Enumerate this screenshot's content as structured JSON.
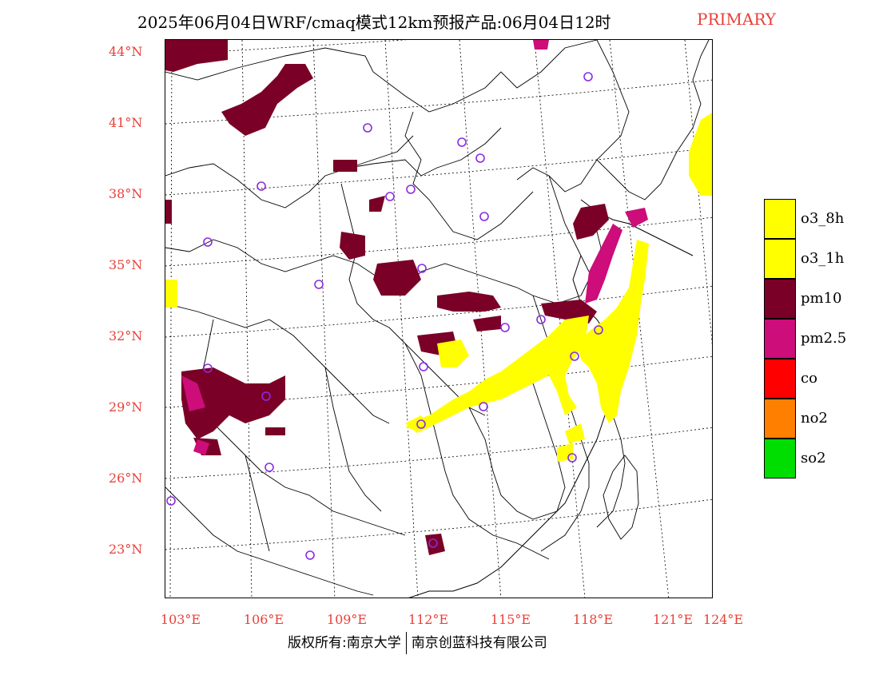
{
  "title": {
    "main": "2025年06月04日WRF/cmaq模式12km预报产品:06月04日12时",
    "primary": "PRIMARY"
  },
  "lat_labels": [
    "44°N",
    "41°N",
    "38°N",
    "35°N",
    "32°N",
    "29°N",
    "26°N",
    "23°N"
  ],
  "lon_labels": [
    "103°E",
    "106°E",
    "109°E",
    "112°E",
    "115°E",
    "118°E",
    "121°E",
    "124°E"
  ],
  "legend": [
    {
      "label": "o3_8h",
      "color": "#ffff00"
    },
    {
      "label": "o3_1h",
      "color": "#ffff00"
    },
    {
      "label": "pm10",
      "color": "#7a0027"
    },
    {
      "label": "pm2.5",
      "color": "#cc0d7a"
    },
    {
      "label": "co",
      "color": "#ff0000"
    },
    {
      "label": "no2",
      "color": "#ff7f00"
    },
    {
      "label": "so2",
      "color": "#00dd00"
    }
  ],
  "footer": {
    "left": "版权所有:南京大学",
    "right": "南京创蓝科技有限公司"
  },
  "colors": {
    "label_red": "#e8403a",
    "o3": "#ffff00",
    "pm10": "#7a0027",
    "pm25": "#cc0d7a",
    "station_ring": "#8a2be2"
  }
}
